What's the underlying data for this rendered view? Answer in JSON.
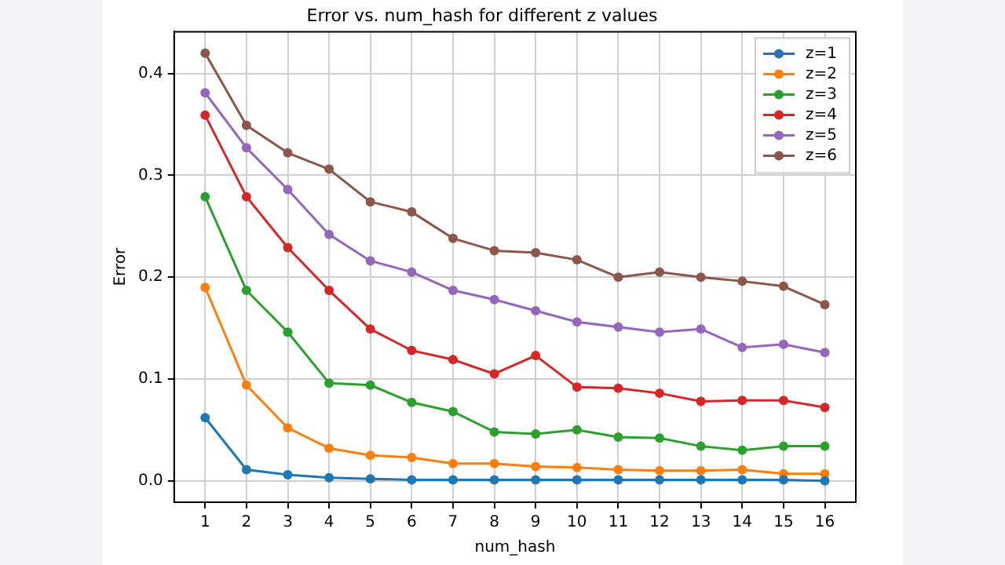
{
  "chart_data": {
    "type": "line",
    "title": "Error vs. num_hash for different z values",
    "xlabel": "num_hash",
    "ylabel": "Error",
    "x": [
      1,
      2,
      3,
      4,
      5,
      6,
      7,
      8,
      9,
      10,
      11,
      12,
      13,
      14,
      15,
      16
    ],
    "series": [
      {
        "name": "z=1",
        "color": "#1f77b4",
        "values": [
          0.062,
          0.011,
          0.006,
          0.003,
          0.002,
          0.001,
          0.001,
          0.001,
          0.001,
          0.001,
          0.001,
          0.001,
          0.001,
          0.001,
          0.001,
          0.0
        ]
      },
      {
        "name": "z=2",
        "color": "#ff7f0e",
        "values": [
          0.19,
          0.094,
          0.052,
          0.032,
          0.025,
          0.023,
          0.017,
          0.017,
          0.014,
          0.013,
          0.011,
          0.01,
          0.01,
          0.011,
          0.007,
          0.007
        ]
      },
      {
        "name": "z=3",
        "color": "#2ca02c",
        "values": [
          0.279,
          0.187,
          0.146,
          0.096,
          0.094,
          0.077,
          0.068,
          0.048,
          0.046,
          0.05,
          0.043,
          0.042,
          0.034,
          0.03,
          0.034,
          0.034
        ]
      },
      {
        "name": "z=4",
        "color": "#d62728",
        "values": [
          0.359,
          0.279,
          0.229,
          0.187,
          0.149,
          0.128,
          0.119,
          0.105,
          0.123,
          0.092,
          0.091,
          0.086,
          0.078,
          0.079,
          0.079,
          0.072
        ]
      },
      {
        "name": "z=5",
        "color": "#9467bd",
        "values": [
          0.381,
          0.327,
          0.286,
          0.242,
          0.216,
          0.205,
          0.187,
          0.178,
          0.167,
          0.156,
          0.151,
          0.146,
          0.149,
          0.131,
          0.134,
          0.126
        ]
      },
      {
        "name": "z=6",
        "color": "#8c564b",
        "values": [
          0.42,
          0.349,
          0.322,
          0.306,
          0.274,
          0.264,
          0.238,
          0.226,
          0.224,
          0.217,
          0.2,
          0.205,
          0.2,
          0.196,
          0.191,
          0.173
        ]
      }
    ],
    "xlim": [
      0.25,
      16.75
    ],
    "xticks": [
      1,
      2,
      3,
      4,
      5,
      6,
      7,
      8,
      9,
      10,
      11,
      12,
      13,
      14,
      15,
      16
    ],
    "ylim": [
      -0.021,
      0.441
    ],
    "yticks": [
      {
        "value": 0,
        "label": "0.0"
      },
      0.1,
      0.2,
      0.3,
      0.4
    ],
    "grid": true,
    "legend": "top right",
    "marker": "circle",
    "line_style": "solid"
  }
}
